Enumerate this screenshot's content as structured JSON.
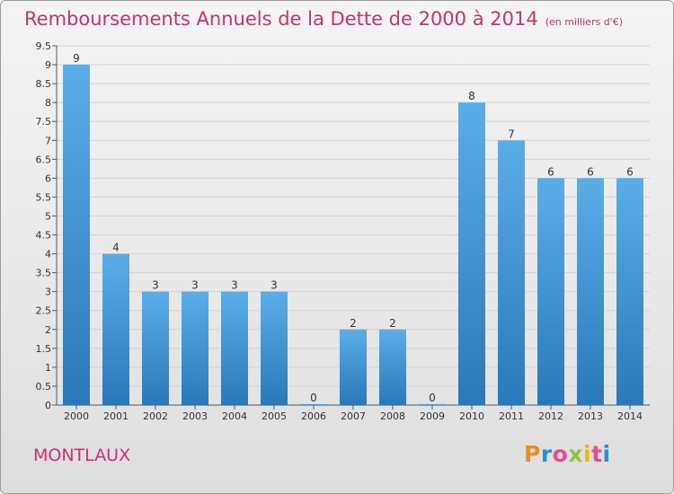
{
  "title": "Remboursements Annuels de la Dette de 2000 à 2014",
  "subtitle": "(en milliers d'€)",
  "commune": "MONTLAUX",
  "logo": {
    "letters": [
      "P",
      "r",
      "o",
      "x",
      "i",
      "t",
      "i"
    ],
    "colors": [
      "#f08a1c",
      "#2a8fd8",
      "#e84e8a",
      "#8cc63f",
      "#f5b800",
      "#e84e8a",
      "#2a8fd8"
    ]
  },
  "colors": {
    "title": "#c8336e",
    "bar_light": "#5aaee8",
    "bar_dark": "#2a78b8"
  },
  "chart_data": {
    "type": "bar",
    "categories": [
      "2000",
      "2001",
      "2002",
      "2003",
      "2004",
      "2005",
      "2006",
      "2007",
      "2008",
      "2009",
      "2010",
      "2011",
      "2012",
      "2013",
      "2014"
    ],
    "values": [
      9,
      4,
      3,
      3,
      3,
      3,
      0,
      2,
      2,
      0,
      8,
      7,
      6,
      6,
      6
    ],
    "value_labels": [
      "9",
      "4",
      "3",
      "3",
      "3",
      "3",
      "0",
      "2",
      "2",
      "0",
      "8",
      "7",
      "6",
      "6",
      "6"
    ],
    "yticks": [
      0,
      0.5,
      1,
      1.5,
      2,
      2.5,
      3,
      3.5,
      4,
      4.5,
      5,
      5.5,
      6,
      6.5,
      7,
      7.5,
      8,
      8.5,
      9,
      9.5
    ],
    "ytick_labels": [
      "0",
      "0.5",
      "1",
      "1.5",
      "2",
      "2.5",
      "3",
      "3.5",
      "4",
      "4.5",
      "5",
      "5.5",
      "6",
      "6.5",
      "7",
      "7.5",
      "8",
      "8.5",
      "9",
      "9.5"
    ],
    "ylim": [
      0,
      9.5
    ],
    "grid": true
  }
}
